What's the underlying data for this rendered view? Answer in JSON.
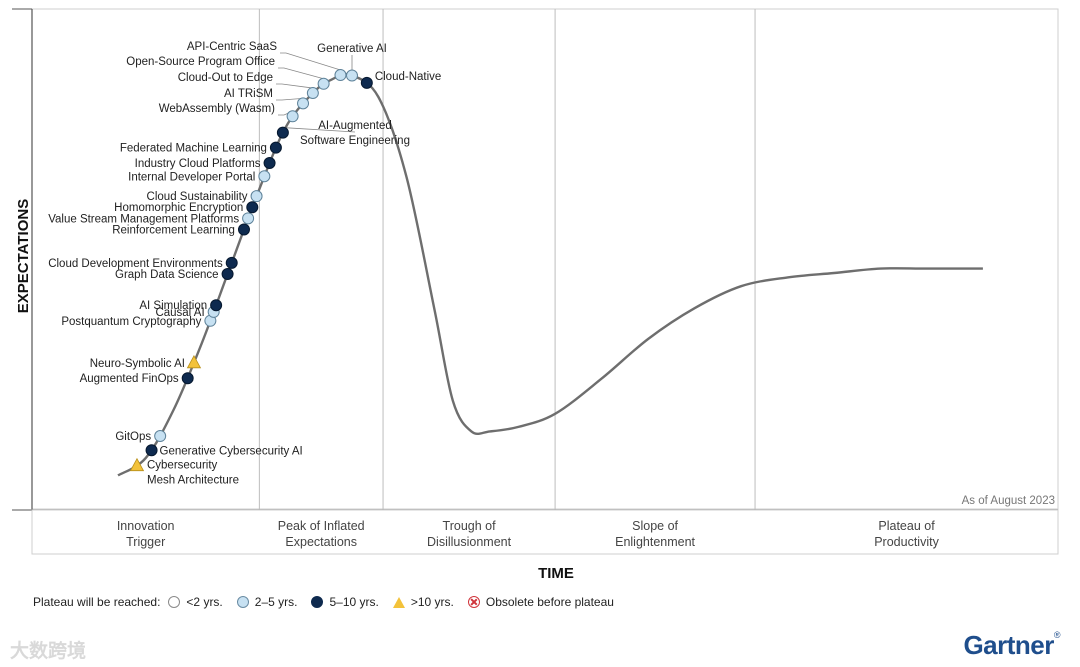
{
  "chart_data": {
    "type": "line",
    "y_axis_label": "EXPECTATIONS",
    "x_axis_label": "TIME",
    "as_of": "As of August 2023",
    "phases": [
      {
        "lines": [
          "Innovation",
          "Trigger"
        ]
      },
      {
        "lines": [
          "Peak of Inflated",
          "Expectations"
        ]
      },
      {
        "lines": [
          "Trough of",
          "Disillusionment"
        ]
      },
      {
        "lines": [
          "Slope of",
          "Enlightenment"
        ]
      },
      {
        "lines": [
          "Plateau of",
          "Productivity"
        ]
      }
    ],
    "phase_boundaries_time": [
      0.152,
      0.285,
      0.47,
      0.685
    ],
    "curve": {
      "time": [
        0.0,
        0.03,
        0.06,
        0.09,
        0.12,
        0.15,
        0.18,
        0.21,
        0.23,
        0.25,
        0.28,
        0.31,
        0.34,
        0.36,
        0.38,
        0.4,
        0.43,
        0.47,
        0.52,
        0.57,
        0.62,
        0.67,
        0.72,
        0.77,
        0.82,
        0.87,
        0.93
      ],
      "expectation": [
        0.04,
        0.08,
        0.19,
        0.34,
        0.51,
        0.68,
        0.83,
        0.91,
        0.94,
        0.95,
        0.9,
        0.72,
        0.42,
        0.21,
        0.14,
        0.14,
        0.15,
        0.18,
        0.26,
        0.35,
        0.42,
        0.47,
        0.49,
        0.5,
        0.51,
        0.51,
        0.51
      ]
    },
    "points": [
      {
        "name": "Cybersecurity Mesh Architecture",
        "lines": [
          "Cybersecurity",
          "Mesh Architecture"
        ],
        "plateau": ">10 yrs.",
        "t": 0.0212,
        "label_side": "right"
      },
      {
        "name": "Generative Cybersecurity AI",
        "lines": [
          "Generative Cybersecurity AI"
        ],
        "plateau": "5–10 yrs.",
        "t": 0.036,
        "label_side": "right"
      },
      {
        "name": "GitOps",
        "lines": [
          "GitOps"
        ],
        "plateau": "2–5 yrs.",
        "t": 0.045,
        "label_side": "left"
      },
      {
        "name": "Augmented FinOps",
        "lines": [
          "Augmented FinOps"
        ],
        "plateau": "5–10 yrs.",
        "t": 0.075,
        "label_side": "left"
      },
      {
        "name": "Neuro-Symbolic AI",
        "lines": [
          "Neuro-Symbolic AI"
        ],
        "plateau": ">10 yrs.",
        "t": 0.082,
        "label_side": "left"
      },
      {
        "name": "Postquantum Cryptography",
        "lines": [
          "Postquantum Cryptography"
        ],
        "plateau": "2–5 yrs.",
        "t": 0.0997,
        "label_side": "left"
      },
      {
        "name": "Causal AI",
        "lines": [
          "Causal AI"
        ],
        "plateau": "2–5 yrs.",
        "t": 0.103,
        "label_side": "left"
      },
      {
        "name": "AI Simulation",
        "lines": [
          "AI Simulation"
        ],
        "plateau": "5–10 yrs.",
        "t": 0.1055,
        "label_side": "left"
      },
      {
        "name": "Graph Data Science",
        "lines": [
          "Graph Data Science"
        ],
        "plateau": "5–10 yrs.",
        "t": 0.1178,
        "label_side": "left"
      },
      {
        "name": "Cloud Development Environments",
        "lines": [
          "Cloud Development Environments"
        ],
        "plateau": "5–10 yrs.",
        "t": 0.1219,
        "label_side": "left"
      },
      {
        "name": "Reinforcement Learning",
        "lines": [
          "Reinforcement Learning"
        ],
        "plateau": "5–10 yrs.",
        "t": 0.1351,
        "label_side": "left"
      },
      {
        "name": "Value Stream Management Platforms",
        "lines": [
          "Value Stream Management Platforms"
        ],
        "plateau": "2–5 yrs.",
        "t": 0.1398,
        "label_side": "left"
      },
      {
        "name": "Homomorphic Encryption",
        "lines": [
          "Homomorphic Encryption"
        ],
        "plateau": "5–10 yrs.",
        "t": 0.1445,
        "label_side": "left"
      },
      {
        "name": "Cloud Sustainability",
        "lines": [
          "Cloud Sustainability"
        ],
        "plateau": "2–5 yrs.",
        "t": 0.1491,
        "label_side": "left"
      },
      {
        "name": "Internal Developer Portal",
        "lines": [
          "Internal Developer Portal"
        ],
        "plateau": "2–5 yrs.",
        "t": 0.1571,
        "label_side": "left"
      },
      {
        "name": "Industry Cloud Platforms",
        "lines": [
          "Industry Cloud Platforms"
        ],
        "plateau": "5–10 yrs.",
        "t": 0.1627,
        "label_side": "left"
      },
      {
        "name": "Federated Machine Learning",
        "lines": [
          "Federated Machine Learning"
        ],
        "plateau": "5–10 yrs.",
        "t": 0.1693,
        "label_side": "left"
      },
      {
        "name": "AI-Augmented Software Engineering",
        "lines": [
          "AI-Augmented",
          "Software Engineering"
        ],
        "plateau": "5–10 yrs.",
        "t": 0.1778,
        "label_side": "leader"
      },
      {
        "name": "WebAssembly (Wasm)",
        "lines": [
          "WebAssembly (Wasm)"
        ],
        "plateau": "2–5 yrs.",
        "t": 0.1873,
        "label_side": "leader"
      },
      {
        "name": "AI TRiSM",
        "lines": [
          "AI TRiSM"
        ],
        "plateau": "2–5 yrs.",
        "t": 0.1986,
        "label_side": "leader"
      },
      {
        "name": "Cloud-Out to Edge",
        "lines": [
          "Cloud-Out to Edge"
        ],
        "plateau": "2–5 yrs.",
        "t": 0.2099,
        "label_side": "leader"
      },
      {
        "name": "Open-Source Program Office",
        "lines": [
          "Open-Source Program Office"
        ],
        "plateau": "2–5 yrs.",
        "t": 0.2212,
        "label_side": "leader"
      },
      {
        "name": "API-Centric SaaS",
        "lines": [
          "API-Centric SaaS"
        ],
        "plateau": "2–5 yrs.",
        "t": 0.2401,
        "label_side": "leader"
      },
      {
        "name": "Generative AI",
        "lines": [
          "Generative AI"
        ],
        "plateau": "2–5 yrs.",
        "t": 0.2523,
        "label_side": "leader"
      },
      {
        "name": "Cloud-Native",
        "lines": [
          "Cloud-Native"
        ],
        "plateau": "5–10 yrs.",
        "t": 0.2684,
        "label_side": "right"
      }
    ],
    "legend": {
      "title": "Plateau will be reached:",
      "items": [
        {
          "label": "<2 yrs.",
          "symbol": "circle-white"
        },
        {
          "label": "2–5 yrs.",
          "symbol": "circle-light"
        },
        {
          "label": "5–10 yrs.",
          "symbol": "circle-dark"
        },
        {
          "label": ">10 yrs.",
          "symbol": "triangle-yellow"
        },
        {
          "label": "Obsolete before plateau",
          "symbol": "x-red"
        }
      ]
    },
    "colors": {
      "curve": "#6e6e6e",
      "light": "#c7e1f2",
      "dark": "#0e2a4f",
      "triangle": "#f3c23a",
      "obsolete": "#d0343b"
    }
  },
  "brand": "Gartner",
  "brand_mark": "®",
  "watermark": "大数跨境"
}
